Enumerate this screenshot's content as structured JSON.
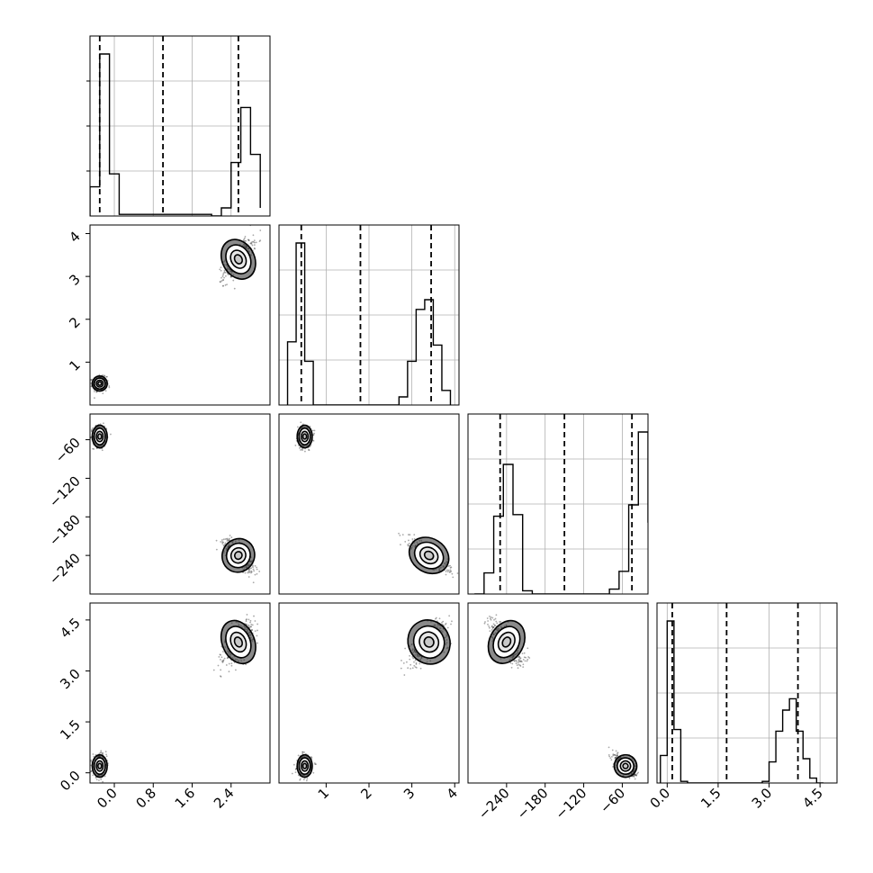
{
  "chart_data": {
    "type": "corner",
    "variables": [
      {
        "range": [
          -0.5,
          3.2
        ],
        "ticks": [
          0.0,
          0.8,
          1.6,
          2.4
        ],
        "tick_labels": [
          "0.0",
          "0.8",
          "1.6",
          "2.4"
        ],
        "quantiles": [
          -0.3,
          1.0,
          2.55
        ],
        "hist_edges": [
          -0.5,
          -0.3,
          -0.1,
          0.1,
          2.0,
          2.2,
          2.4,
          2.6,
          2.8,
          3.0
        ],
        "hist_counts": [
          0.18,
          1.0,
          0.26,
          0.01,
          0.0,
          0.05,
          0.33,
          0.67,
          0.38,
          0.05
        ]
      },
      {
        "range": [
          -0.1,
          4.1
        ],
        "ticks": [
          1,
          2,
          3,
          4
        ],
        "tick_labels": [
          "1",
          "2",
          "3",
          "4"
        ],
        "quantiles": [
          0.42,
          1.8,
          3.45
        ],
        "hist_edges": [
          0.1,
          0.3,
          0.5,
          0.7,
          0.9,
          2.7,
          2.9,
          3.1,
          3.3,
          3.5,
          3.7,
          3.9
        ],
        "hist_counts": [
          0.39,
          1.0,
          0.27,
          0.0,
          0.0,
          0.05,
          0.27,
          0.59,
          0.65,
          0.37,
          0.09
        ],
        "ylim": [
          0.0,
          4.2
        ],
        "y_ticks": [
          1,
          2,
          3,
          4
        ],
        "y_tick_labels": [
          "1",
          "2",
          "3",
          "4"
        ]
      },
      {
        "range": [
          -300,
          -20
        ],
        "ticks": [
          -240,
          -180,
          -120,
          -60
        ],
        "tick_labels": [
          "−240",
          "−180",
          "−120",
          "−60"
        ],
        "quantiles": [
          -250,
          -150,
          -45
        ],
        "hist_edges": [
          -290,
          -275,
          -260,
          -245,
          -230,
          -215,
          -200,
          -80,
          -65,
          -50,
          -35,
          -20
        ],
        "hist_counts": [
          0.0,
          0.13,
          0.48,
          0.8,
          0.49,
          0.02,
          0.0,
          0.03,
          0.14,
          0.55,
          1.0,
          0.44
        ],
        "ylim": [
          -300,
          -20
        ],
        "y_ticks": [
          -60,
          -120,
          -180,
          -240
        ],
        "y_tick_labels": [
          "−60",
          "−120",
          "−180",
          "−240"
        ]
      },
      {
        "range": [
          -0.3,
          5.0
        ],
        "ticks": [
          0.0,
          1.5,
          3.0,
          4.5
        ],
        "tick_labels": [
          "0.0",
          "1.5",
          "3.0",
          "4.5"
        ],
        "quantiles": [
          0.15,
          1.75,
          3.85
        ],
        "hist_edges": [
          -0.2,
          0.0,
          0.2,
          0.4,
          0.6,
          2.8,
          3.0,
          3.2,
          3.4,
          3.6,
          3.8,
          4.0,
          4.2,
          4.4,
          4.6
        ],
        "hist_counts": [
          0.17,
          1.0,
          0.33,
          0.01,
          0.0,
          0.01,
          0.13,
          0.32,
          0.45,
          0.52,
          0.32,
          0.15,
          0.03,
          0.0
        ],
        "ylim": [
          -0.3,
          5.0
        ],
        "y_ticks": [
          0.0,
          1.5,
          3.0,
          4.5
        ],
        "y_tick_labels": [
          "0.0",
          "1.5",
          "3.0",
          "4.5"
        ]
      }
    ],
    "modes": [
      {
        "center": [
          -0.3,
          0.5,
          -55,
          0.2
        ],
        "spread": [
          0.07,
          0.08,
          8,
          0.15
        ]
      },
      {
        "center": [
          2.55,
          3.4,
          -240,
          3.85
        ],
        "spread": [
          0.15,
          0.22,
          12,
          0.3
        ]
      }
    ],
    "histogram_scale_max": 1.0,
    "grid": true,
    "quantile_style": "dashed"
  },
  "colors": {
    "ink": "#000000",
    "grid": "#b0b0b0",
    "contour_fill": "#d8d8d8",
    "points": "#404040",
    "background": "#ffffff"
  }
}
